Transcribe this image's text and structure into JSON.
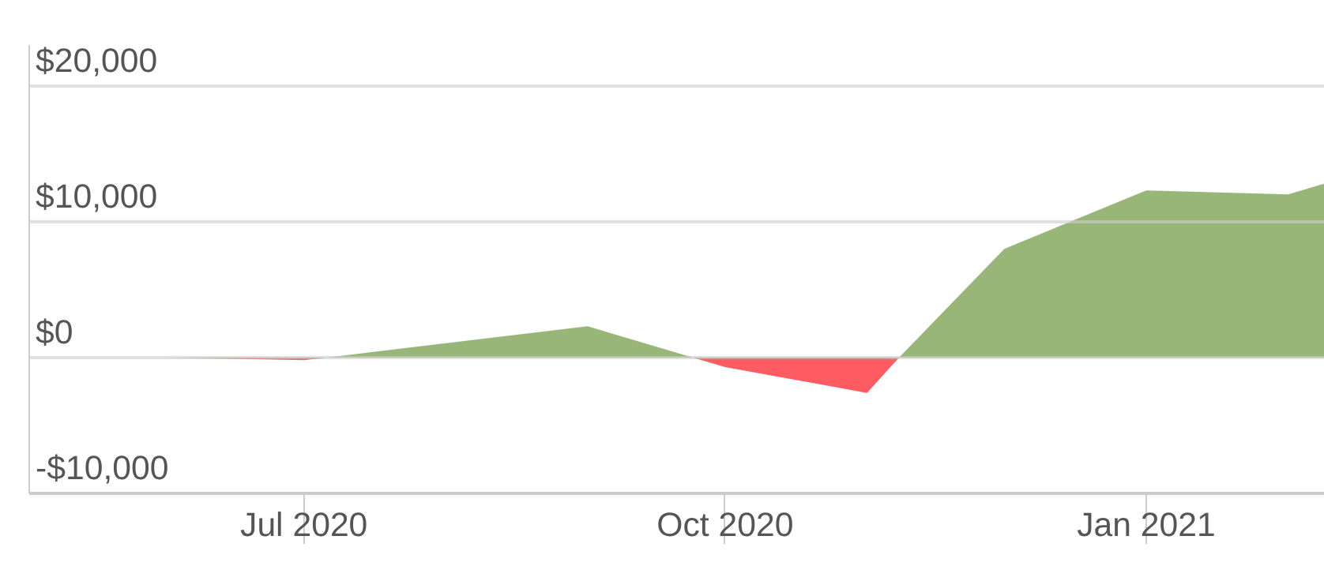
{
  "chart_data": {
    "type": "area",
    "series": [
      {
        "color": "#93b272",
        "x": [
          "2020-05-02",
          "2020-06-01",
          "2020-07-06",
          "2020-09-01",
          "2020-09-24",
          "2020-11-08",
          "2020-12-01",
          "2021-01-01",
          "2021-02-01",
          "2021-02-09"
        ],
        "values": [
          0,
          0,
          0,
          2300,
          0,
          0,
          8000,
          12300,
          12000,
          12800
        ]
      },
      {
        "color": "#ff525b",
        "x": [
          "2020-05-02",
          "2020-06-01",
          "2020-07-01",
          "2020-07-06",
          "2020-09-24",
          "2020-10-01",
          "2020-11-01",
          "2020-11-08",
          "2021-02-09"
        ],
        "values": [
          0,
          0,
          -200,
          0,
          0,
          -700,
          -2600,
          0,
          0
        ]
      }
    ],
    "xlim": [
      "2020-05-02",
      "2021-02-09"
    ],
    "xticks": [
      {
        "value": "2020-07-01",
        "label": "Jul 2020"
      },
      {
        "value": "2020-10-01",
        "label": "Oct 2020"
      },
      {
        "value": "2021-01-01",
        "label": "Jan 2021"
      }
    ],
    "ylim": [
      -10000,
      23000
    ],
    "yticks": [
      {
        "value": -10000,
        "label": "-$10,000"
      },
      {
        "value": 0,
        "label": "$0"
      },
      {
        "value": 10000,
        "label": "$10,000"
      },
      {
        "value": 20000,
        "label": "$20,000"
      }
    ],
    "grid": "y"
  }
}
